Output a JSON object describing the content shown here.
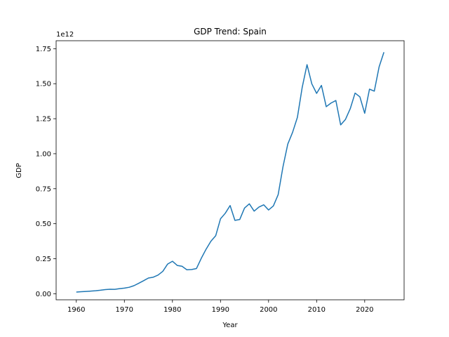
{
  "chart_data": {
    "type": "line",
    "title": "GDP Trend: Spain",
    "xlabel": "Year",
    "ylabel": "GDP",
    "y_offset_text": "1e12",
    "xlim": [
      1955.8,
      2028.2
    ],
    "ylim": [
      -43300000000.0,
      1807000000000.0
    ],
    "x_ticks": [
      1960,
      1970,
      1980,
      1990,
      2000,
      2010,
      2020
    ],
    "x_tick_labels": [
      "1960",
      "1970",
      "1980",
      "1990",
      "2000",
      "2010",
      "2020"
    ],
    "y_ticks": [
      0,
      250000000000.0,
      500000000000.0,
      750000000000.0,
      1000000000000.0,
      1250000000000.0,
      1500000000000.0,
      1750000000000.0
    ],
    "y_tick_labels": [
      "0.00",
      "0.25",
      "0.50",
      "0.75",
      "1.00",
      "1.25",
      "1.50",
      "1.75"
    ],
    "grid": false,
    "line_color": "#1f77b4",
    "series": [
      {
        "x": [
          1960,
          1961,
          1962,
          1963,
          1964,
          1965,
          1966,
          1967,
          1968,
          1969,
          1970,
          1971,
          1972,
          1973,
          1974,
          1975,
          1976,
          1977,
          1978,
          1979,
          1980,
          1981,
          1982,
          1983,
          1984,
          1985,
          1986,
          1987,
          1988,
          1989,
          1990,
          1991,
          1992,
          1993,
          1994,
          1995,
          1996,
          1997,
          1998,
          1999,
          2000,
          2001,
          2002,
          2003,
          2004,
          2005,
          2006,
          2007,
          2008,
          2009,
          2010,
          2011,
          2012,
          2013,
          2014,
          2015,
          2016,
          2017,
          2018,
          2019,
          2020,
          2021,
          2022,
          2023,
          2024
        ],
        "values": [
          12100000000.0,
          14100000000.0,
          16100000000.0,
          18600000000.0,
          21300000000.0,
          24800000000.0,
          29400000000.0,
          32000000000.0,
          31500000000.0,
          36400000000.0,
          40300000000.0,
          46000000000.0,
          57600000000.0,
          75000000000.0,
          93000000000.0,
          112000000000.0,
          118000000000.0,
          133000000000.0,
          160000000000.0,
          212000000000.0,
          232000000000.0,
          202000000000.0,
          196000000000.0,
          171000000000.0,
          173000000000.0,
          180000000000.0,
          253000000000.0,
          318000000000.0,
          375000000000.0,
          414000000000.0,
          535000000000.0,
          575000000000.0,
          630000000000.0,
          524000000000.0,
          530000000000.0,
          612000000000.0,
          642000000000.0,
          590000000000.0,
          619000000000.0,
          635000000000.0,
          598000000000.0,
          627000000000.0,
          708000000000.0,
          907000000000.0,
          1069000000000.0,
          1153000000000.0,
          1260000000000.0,
          1474000000000.0,
          1636000000000.0,
          1499000000000.0,
          1431000000000.0,
          1488000000000.0,
          1336000000000.0,
          1362000000000.0,
          1380000000000.0,
          1206000000000.0,
          1245000000000.0,
          1322000000000.0,
          1433000000000.0,
          1406000000000.0,
          1289000000000.0,
          1461000000000.0,
          1447000000000.0,
          1620000000000.0,
          1725000000000.0
        ]
      }
    ]
  }
}
